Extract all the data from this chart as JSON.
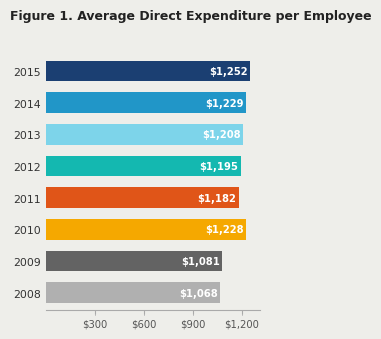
{
  "title": "Figure 1. Average Direct Expenditure per Employee",
  "years": [
    "2015",
    "2014",
    "2013",
    "2012",
    "2011",
    "2010",
    "2009",
    "2008"
  ],
  "values": [
    1252,
    1229,
    1208,
    1195,
    1182,
    1228,
    1081,
    1068
  ],
  "bar_colors": [
    "#1b3f72",
    "#2196c8",
    "#7dd4ea",
    "#14b8b0",
    "#e05518",
    "#f5a800",
    "#636363",
    "#b0b0b0"
  ],
  "labels": [
    "$1,252",
    "$1,229",
    "$1,208",
    "$1,195",
    "$1,182",
    "$1,228",
    "$1,081",
    "$1,068"
  ],
  "xticks": [
    300,
    600,
    900,
    1200
  ],
  "xticklabels": [
    "$300",
    "$600",
    "$900",
    "$1,200"
  ],
  "xlim": [
    0,
    1310
  ],
  "background_color": "#eeeeea",
  "title_fontsize": 9.0,
  "label_fontsize": 7.2,
  "ytick_fontsize": 7.8,
  "xtick_fontsize": 7.2
}
